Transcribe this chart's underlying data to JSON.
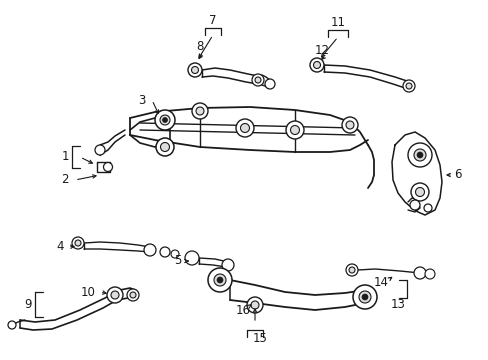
{
  "bg_color": "#ffffff",
  "line_color": "#1a1a1a",
  "fig_width": 4.89,
  "fig_height": 3.6,
  "dpi": 100,
  "font_size": 8.5,
  "font_size_small": 7.5
}
